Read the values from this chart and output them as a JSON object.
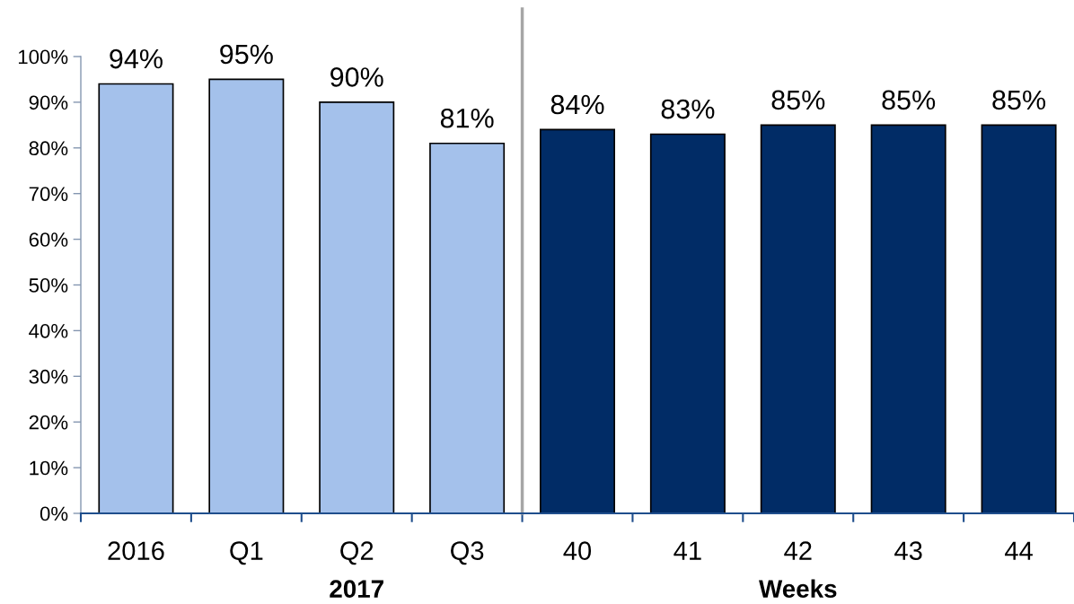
{
  "chart_data": {
    "type": "bar",
    "categories": [
      "2016",
      "Q1",
      "Q2",
      "Q3",
      "40",
      "41",
      "42",
      "43",
      "44"
    ],
    "values": [
      94,
      95,
      90,
      81,
      84,
      83,
      85,
      85,
      85
    ],
    "colors": [
      "#a4c1eb",
      "#a4c1eb",
      "#a4c1eb",
      "#a4c1eb",
      "#012c66",
      "#012c66",
      "#012c66",
      "#012c66",
      "#012c66"
    ],
    "value_labels": [
      "94%",
      "95%",
      "90%",
      "81%",
      "84%",
      "83%",
      "85%",
      "85%",
      "85%"
    ],
    "ylim": [
      0,
      100
    ],
    "yticks": [
      {
        "value": 0,
        "label": "0%"
      },
      {
        "value": 10,
        "label": "10%"
      },
      {
        "value": 20,
        "label": "20%"
      },
      {
        "value": 30,
        "label": "30%"
      },
      {
        "value": 40,
        "label": "40%"
      },
      {
        "value": 50,
        "label": "50%"
      },
      {
        "value": 60,
        "label": "60%"
      },
      {
        "value": 70,
        "label": "70%"
      },
      {
        "value": 80,
        "label": "80%"
      },
      {
        "value": 90,
        "label": "90%"
      },
      {
        "value": 100,
        "label": "100%"
      }
    ],
    "grid": false,
    "annotations": [
      "2017",
      "Weeks"
    ]
  }
}
